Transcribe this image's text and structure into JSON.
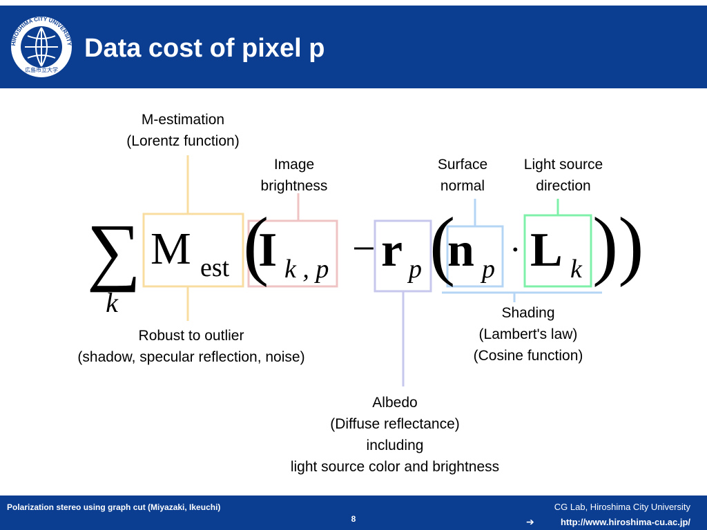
{
  "header": {
    "title": "Data cost of pixel p",
    "logo_text": "HIROSHIMA CITY UNIVERSITY",
    "logo_text_jp": "広島市立大学"
  },
  "formula": {
    "sum": "∑",
    "sum_index": "k",
    "m": "M",
    "m_sub": "est",
    "open1": "(",
    "i": "I",
    "i_sub": "k , p",
    "minus": "−",
    "r": "r",
    "r_sub": "p",
    "open2": "(",
    "n": "n",
    "n_sub": "p",
    "dot": "·",
    "l": "L",
    "l_sub": "k",
    "close": "))"
  },
  "annotations": {
    "m_estimation": [
      "M-estimation",
      "(Lorentz function)"
    ],
    "image_brightness": [
      "Image",
      "brightness"
    ],
    "surface_normal": [
      "Surface",
      "normal"
    ],
    "light_direction": [
      "Light source",
      "direction"
    ],
    "robust": [
      "Robust to outlier",
      "(shadow, specular reflection, noise)"
    ],
    "shading": [
      "Shading",
      "(Lambert's law)",
      "(Cosine function)"
    ],
    "albedo": [
      "Albedo",
      "(Diffuse reflectance)",
      "including",
      "light source color and brightness"
    ]
  },
  "footer": {
    "left": "Polarization stereo using graph cut (Miyazaki, Ikeuchi)",
    "page": "8",
    "right_top": "CG Lab, Hiroshima City University",
    "arrow": "➔",
    "url": "http://www.hiroshima-cu.ac.jp/"
  }
}
